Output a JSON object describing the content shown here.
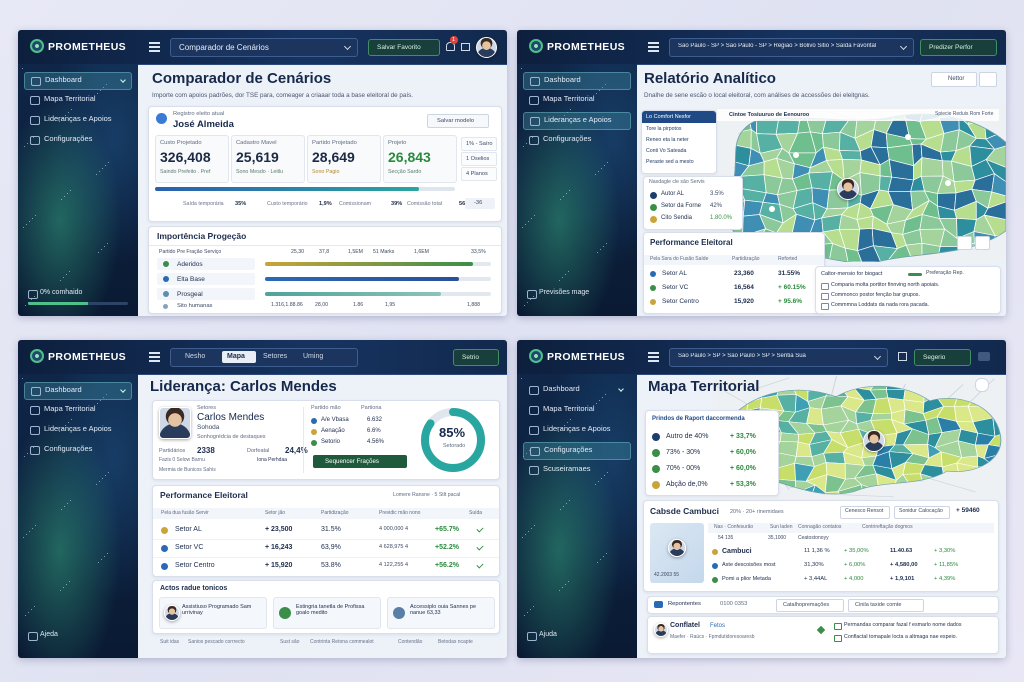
{
  "panels": [
    {
      "brand": "PROMETHEUS",
      "crumb": "Comparador de Cenários",
      "button": "Salvar Favorito",
      "badge": "1",
      "nav": [
        "Dashboard",
        "Mapa Territorial",
        "Lideranças e Apoios",
        "Configurações"
      ],
      "foot": "0% comhaido",
      "title": "Comparador de Cenários",
      "subtitle": "Importe com apoios padrões, dor TSE para, comeager a criaaar toda a base eleitoral de país.",
      "profile_label": "Registro eleito atual",
      "profile_name": "José Almeida",
      "profile_button": "Salvar modelo",
      "stats": [
        {
          "label": "Custo Projetado",
          "value": "326,408",
          "sub": "Saindo Prefeito . Pref"
        },
        {
          "label": "Cadastro Mavel",
          "value": "25,619",
          "sub": "Sono Mesdo · Leitlu"
        },
        {
          "label": "Partido Projetado",
          "value": "28,649",
          "sub": "Sono Pagio"
        },
        {
          "label": "Projeto",
          "value": "26,843",
          "sub": "Secção Sardo"
        }
      ],
      "options": [
        "1% - Saíro",
        "1 Oselios",
        "4 Planos"
      ],
      "stats_progress": 88,
      "summary": [
        [
          "Saída temporária",
          "35%"
        ],
        [
          "Custo temporário",
          "1,9%"
        ],
        [
          "Comissionam",
          "39%"
        ],
        [
          "Comissão total",
          "56%"
        ]
      ],
      "summary_tail": "-36",
      "section_title": "Importência Progeção",
      "section_head": "Partido Pre Fração Serviço",
      "section_cols": [
        "25,30",
        "37,8",
        "1,5EM",
        "51 Marks",
        "1,6EM",
        "33,5%"
      ],
      "section_rows": [
        {
          "name": "Aderidos",
          "bar": 92
        },
        {
          "name": "Elta Base",
          "bar": 86
        },
        {
          "name": "Prosgeal",
          "bar": 78
        }
      ],
      "section_last": {
        "name": "Sito humanas",
        "cols": [
          "1.316,1.88.86",
          "28,00",
          "1.86",
          "1,95",
          "1,888"
        ]
      }
    },
    {
      "brand": "PROMETHEUS",
      "crumb": "São Paulo - SP > São Paulo - SP > Região > Bolivo Sitio > Saída Favorital",
      "button": "Predizer Perfor",
      "nav": [
        "Dashboard",
        "Mapa Territorial",
        "Lideranças e Apoios",
        "Configurações"
      ],
      "foot": "Previsões mage",
      "title": "Relatório Analítico",
      "action": "Nettor",
      "subtitle": "Dnalhe de sene escão o local eleitoral, com análises de accessões dei eleitgnas.",
      "side_title": "Lo Comfort Nesfor",
      "side_lines": [
        "Tore la pirpotos",
        "Reneo eta la neter",
        "Conti Vo Sateada",
        "Peraste sed a mesto"
      ],
      "map_header": "Cintoe Tosiuuruo de Eenouroo",
      "map_hint": "Spiecie Reduis Rom Forte",
      "legend_title": "Nasdagle cle são Servis",
      "legend": [
        [
          "Autor AL",
          "3.5%"
        ],
        [
          "Setor da Forne",
          "42%"
        ],
        [
          "Cito Sendia",
          "1.80.0%"
        ]
      ],
      "perf_title": "Performance Eleitoral",
      "perf_cols": [
        "Pela Ssra do Fusão Saíde",
        "Partidização",
        "Reforted"
      ],
      "perf_rows": [
        [
          "Setor AL",
          "23,360",
          "31.55%"
        ],
        [
          "Setor VC",
          "16,564",
          "+ 60.15%"
        ],
        [
          "Setor Centro",
          "15,920",
          "+ 95.6%"
        ]
      ],
      "notes_title": "Caltor-mensio for biogact",
      "notes_tag": "Preferação Rep.",
      "notes": [
        "Comparia molta portitor finnving north apoiais.",
        "Commonco postor fenção bar grupos.",
        "Commmna Loddats da nada rora pacada."
      ]
    },
    {
      "brand": "PROMETHEUS",
      "tabs": [
        "Nesho",
        "Mapa",
        "Setores",
        "Uming"
      ],
      "button": "Setrio",
      "nav": [
        "Dashboard",
        "Mapa Territorial",
        "Lideranças e Apoios",
        "Configurações"
      ],
      "foot": "Ajeda",
      "title": "Liderança: Carlos Mendes",
      "profile": {
        "tag": "Setores",
        "name": "Carlos Mendes",
        "role": "Sohoda",
        "desc": "Sonhogrédcia de destaques",
        "k1": "Partidários",
        "v1": "2338",
        "k2": "Dorfeatal",
        "v2": "24,4%",
        "line2": "Fazis  0  Selow Barnu",
        "line2b": "Iona Perhdaa",
        "line3": "Mermia de Bunicos Sahis"
      },
      "mid_head": "Partido mão",
      "mid_head2": "Partiona",
      "mid_rows": [
        [
          "A/e Vbasa",
          "6.632"
        ],
        [
          "Aenação",
          "6.6%"
        ],
        [
          "Setorio",
          "4.56%"
        ]
      ],
      "donut": {
        "value": 85,
        "label": "85%",
        "caption": "Setorado"
      },
      "cta": "Sequencer Frações",
      "perf_title": "Performance Eleitoral",
      "perf_filter": "Lomere Ransne  ·  5 Stlt pacal",
      "perf_cols": [
        "Pela dua fusão Servir",
        "Setor jão",
        "Partidização",
        "Previdic mão nono",
        "Suída"
      ],
      "perf_rows": [
        [
          "Setor AL",
          "+ 23,500",
          "31.5%",
          "4 000,000 4",
          "+65.7%"
        ],
        [
          "Setor VC",
          "+ 16,243",
          "63,9%",
          "4 628,975 4",
          "+52.2%"
        ],
        [
          "Setor Centro",
          "+ 15,920",
          "53.8%",
          "4 122,255 4",
          "+56.2%"
        ]
      ],
      "actions_title": "Actos radue tonicos",
      "actions": [
        "Assistiuso Programado Sam urrivinay",
        "Estingria tanetla de Profissa goalo medito",
        "Accessiplo ouia Sannes pe nanue 63,33"
      ],
      "footer": [
        "Suit idas",
        "Sanios pescado corrrecto",
        "Sust são",
        "Contrinta Retona commealot",
        "Contendão",
        "Betodas ncapte"
      ]
    },
    {
      "brand": "PROMETHEUS",
      "crumb": "São Paulo > SP > São Paulo > SP > Sentia Sua",
      "button": "Segerio",
      "nav": [
        "Dashboard",
        "Mapa Territorial",
        "Lideranças e Apoios",
        "Configurações",
        "Scuseiramaes"
      ],
      "foot": "Ajuda",
      "title": "Mapa Territorial",
      "range_title": "Prindos de Raport daccormenda",
      "range_rows": [
        [
          "Autro de 40%",
          "+ 33,7%"
        ],
        [
          "73% - 30%",
          "+ 60,0%"
        ],
        [
          "70% - 00%",
          "+ 60,0%"
        ],
        [
          "Abção de,0%",
          "+ 53,3%"
        ]
      ],
      "district": {
        "title": "Cabsde Cambuci",
        "meta": "20% · 20+ rinemidaes",
        "b1": "Cenesco Rensot",
        "b2": "Sonidur Calocação",
        "b3": "+ 59460",
        "cols": [
          "Nas · Confesurão",
          "Sun laden",
          "Connagão contatos",
          "Contrireftação dogmos"
        ],
        "sub": [
          "54 135",
          "35,1000",
          "Ceatostonoyy"
        ],
        "rows": [
          [
            "Cambuci",
            "11 1,36 %",
            "+ 35,00%",
            "11.40.63",
            "+ 3,30%"
          ],
          [
            "Aste descoisões most",
            "31,30%",
            "+ 6,00%",
            "+ 4,580,00",
            "+ 11,85%"
          ],
          [
            "Pomi a plior Metada",
            "+ 3,44AL",
            "+ 4,000",
            "+ 1,9,101",
            "+ 4,39%"
          ]
        ],
        "map_caption": "42.2003 55"
      },
      "footer1": [
        "Repontentes",
        "0100 0353",
        "Catalhopremações",
        "Cinila taxide comte"
      ],
      "footer2": {
        "name": "Conflatel",
        "tag": "Fetos",
        "line": "Maefer · Raúcs · Fpmdutidoresoaresb",
        "notes": [
          "Permandas comparar fazal f esmarlo nome dados",
          "Conflactal tomapale locta a altmaga nae espeio."
        ]
      }
    }
  ]
}
